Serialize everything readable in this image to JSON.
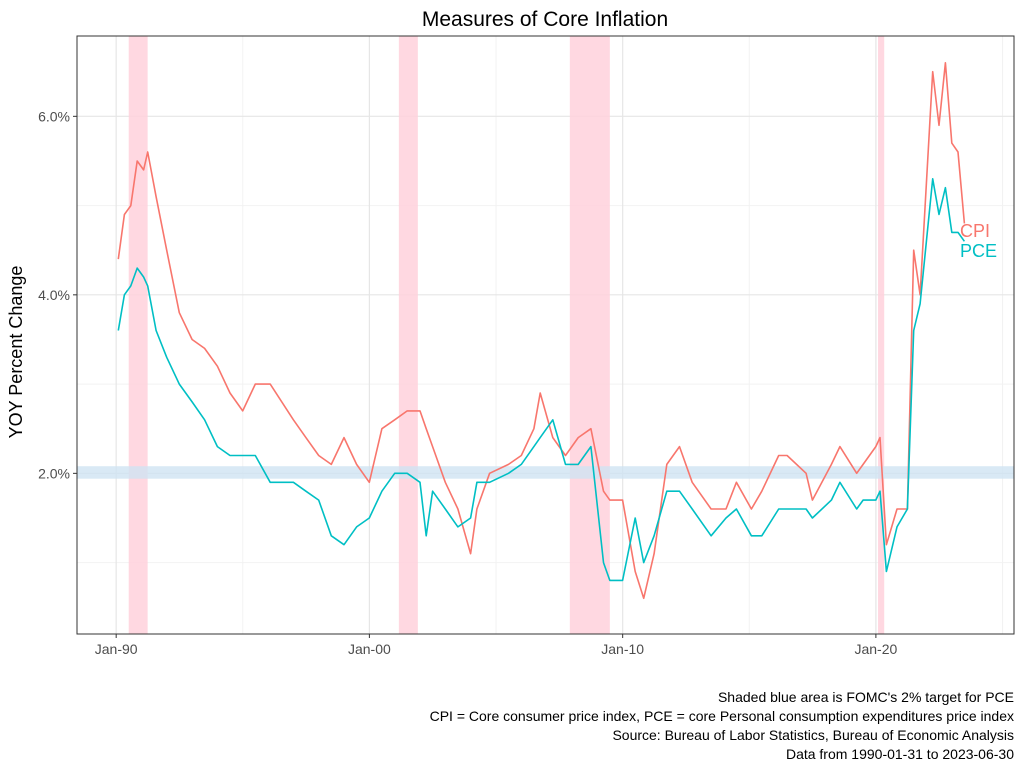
{
  "chart_data": {
    "type": "line",
    "title": "Measures of Core Inflation",
    "ylabel": "YOY Percent Change",
    "xlabel": "",
    "x_range": [
      "1988-06-15",
      "2025-06-15"
    ],
    "ylim": [
      0.2,
      6.9
    ],
    "y_ticks": [
      2,
      4,
      6
    ],
    "y_tick_labels": [
      "2.0%",
      "4.0%",
      "6.0%"
    ],
    "x_ticks": [
      "1990-01-01",
      "2000-01-01",
      "2010-01-01",
      "2020-01-01"
    ],
    "x_tick_labels": [
      "Jan-90",
      "Jan-00",
      "Jan-10",
      "Jan-20"
    ],
    "grid": true,
    "target_band": [
      1.94,
      2.08
    ],
    "recessions": [
      [
        "1990-07-01",
        "1991-03-31"
      ],
      [
        "2001-03-01",
        "2001-11-30"
      ],
      [
        "2007-12-01",
        "2009-06-30"
      ],
      [
        "2020-02-01",
        "2020-04-30"
      ]
    ],
    "colors": {
      "CPI": "#F8766D",
      "PCE": "#00BFC4",
      "recession": "#FFD1DC",
      "target": "#CFE3F2"
    },
    "series": [
      {
        "name": "CPI",
        "x": [
          "1990-01-31",
          "1990-04-30",
          "1990-07-31",
          "1990-10-31",
          "1991-01-31",
          "1991-03-31",
          "1991-07-31",
          "1991-12-31",
          "1992-06-30",
          "1992-12-31",
          "1993-06-30",
          "1993-12-31",
          "1994-06-30",
          "1994-12-31",
          "1995-06-30",
          "1996-01-31",
          "1996-12-31",
          "1997-06-30",
          "1997-12-31",
          "1998-06-30",
          "1998-12-31",
          "1999-06-30",
          "1999-12-31",
          "2000-06-30",
          "2000-12-31",
          "2001-06-30",
          "2001-12-31",
          "2002-03-31",
          "2002-06-30",
          "2002-12-31",
          "2003-06-30",
          "2003-12-31",
          "2004-03-31",
          "2004-09-30",
          "2005-06-30",
          "2005-12-31",
          "2006-06-30",
          "2006-09-30",
          "2007-03-31",
          "2007-09-30",
          "2008-03-31",
          "2008-09-30",
          "2009-03-31",
          "2009-06-30",
          "2009-12-31",
          "2010-06-30",
          "2010-10-31",
          "2011-03-31",
          "2011-09-30",
          "2012-03-31",
          "2012-09-30",
          "2013-06-30",
          "2014-01-31",
          "2014-06-30",
          "2015-01-31",
          "2015-06-30",
          "2016-02-29",
          "2016-06-30",
          "2017-03-31",
          "2017-06-30",
          "2018-03-31",
          "2018-07-31",
          "2019-03-31",
          "2019-06-30",
          "2019-12-31",
          "2020-02-29",
          "2020-05-31",
          "2020-10-31",
          "2021-03-31",
          "2021-06-30",
          "2021-09-30",
          "2022-03-31",
          "2022-06-30",
          "2022-09-30",
          "2022-12-31",
          "2023-03-31",
          "2023-06-30"
        ],
        "values": [
          4.4,
          4.9,
          5.0,
          5.5,
          5.4,
          5.6,
          5.1,
          4.5,
          3.8,
          3.5,
          3.4,
          3.2,
          2.9,
          2.7,
          3.0,
          3.0,
          2.6,
          2.4,
          2.2,
          2.1,
          2.4,
          2.1,
          1.9,
          2.5,
          2.6,
          2.7,
          2.7,
          2.5,
          2.3,
          1.9,
          1.6,
          1.1,
          1.6,
          2.0,
          2.1,
          2.2,
          2.5,
          2.9,
          2.4,
          2.2,
          2.4,
          2.5,
          1.8,
          1.7,
          1.7,
          0.9,
          0.6,
          1.1,
          2.1,
          2.3,
          1.9,
          1.6,
          1.6,
          1.9,
          1.6,
          1.8,
          2.2,
          2.2,
          2.0,
          1.7,
          2.1,
          2.3,
          2.0,
          2.1,
          2.3,
          2.4,
          1.2,
          1.6,
          1.6,
          4.5,
          4.0,
          6.5,
          5.9,
          6.6,
          5.7,
          5.6,
          4.8
        ]
      },
      {
        "name": "PCE",
        "x": [
          "1990-01-31",
          "1990-04-30",
          "1990-07-31",
          "1990-10-31",
          "1991-01-31",
          "1991-03-31",
          "1991-07-31",
          "1991-12-31",
          "1992-06-30",
          "1992-12-31",
          "1993-06-30",
          "1993-12-31",
          "1994-06-30",
          "1994-12-31",
          "1995-06-30",
          "1996-01-31",
          "1996-12-31",
          "1997-06-30",
          "1997-12-31",
          "1998-06-30",
          "1998-12-31",
          "1999-06-30",
          "1999-12-31",
          "2000-06-30",
          "2000-12-31",
          "2001-06-30",
          "2001-12-31",
          "2002-03-31",
          "2002-06-30",
          "2002-12-31",
          "2003-06-30",
          "2003-12-31",
          "2004-03-31",
          "2004-09-30",
          "2005-06-30",
          "2005-12-31",
          "2006-06-30",
          "2006-09-30",
          "2007-03-31",
          "2007-09-30",
          "2008-03-31",
          "2008-09-30",
          "2009-03-31",
          "2009-06-30",
          "2009-12-31",
          "2010-06-30",
          "2010-10-31",
          "2011-03-31",
          "2011-09-30",
          "2012-03-31",
          "2012-09-30",
          "2013-06-30",
          "2014-01-31",
          "2014-06-30",
          "2015-01-31",
          "2015-06-30",
          "2016-02-29",
          "2016-06-30",
          "2017-03-31",
          "2017-06-30",
          "2018-03-31",
          "2018-07-31",
          "2019-03-31",
          "2019-06-30",
          "2019-12-31",
          "2020-02-29",
          "2020-05-31",
          "2020-10-31",
          "2021-03-31",
          "2021-06-30",
          "2021-09-30",
          "2022-03-31",
          "2022-06-30",
          "2022-09-30",
          "2022-12-31",
          "2023-03-31",
          "2023-06-30"
        ],
        "values": [
          3.6,
          4.0,
          4.1,
          4.3,
          4.2,
          4.1,
          3.6,
          3.3,
          3.0,
          2.8,
          2.6,
          2.3,
          2.2,
          2.2,
          2.2,
          1.9,
          1.9,
          1.8,
          1.7,
          1.3,
          1.2,
          1.4,
          1.5,
          1.8,
          2.0,
          2.0,
          1.9,
          1.3,
          1.8,
          1.6,
          1.4,
          1.5,
          1.9,
          1.9,
          2.0,
          2.1,
          2.3,
          2.4,
          2.6,
          2.1,
          2.1,
          2.3,
          1.0,
          0.8,
          0.8,
          1.5,
          1.0,
          1.3,
          1.8,
          1.8,
          1.6,
          1.3,
          1.5,
          1.6,
          1.3,
          1.3,
          1.6,
          1.6,
          1.6,
          1.5,
          1.7,
          1.9,
          1.6,
          1.7,
          1.7,
          1.8,
          0.9,
          1.4,
          1.6,
          3.6,
          3.9,
          5.3,
          4.9,
          5.2,
          4.7,
          4.7,
          4.6
        ]
      }
    ],
    "end_labels": [
      "CPI",
      "PCE"
    ]
  },
  "captions": {
    "line1": "Shaded blue area is FOMC's 2% target for PCE",
    "line2": "CPI = Core consumer price index, PCE = core Personal consumption expenditures price index",
    "line3": "Source: Bureau of Labor Statistics, Bureau of Economic Analysis",
    "line4": "Data from 1990-01-31 to 2023-06-30"
  }
}
